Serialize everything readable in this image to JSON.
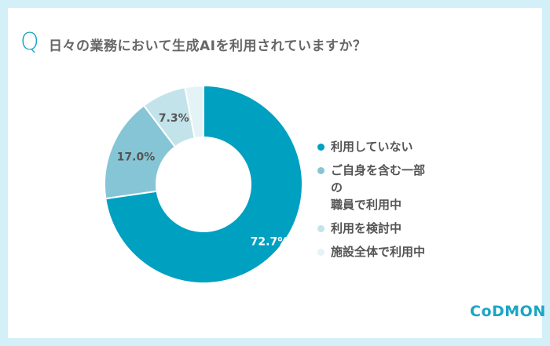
{
  "title": "日々の業務において生成AIを利用されていますか？",
  "q_mark": "Q",
  "logo": "CoDMON",
  "chart_data": {
    "type": "pie",
    "donut": true,
    "title": "日々の業務において生成AIを利用されていますか？",
    "categories": [
      "利用していない",
      "ご自身を含む一部の職員で利用中",
      "利用を検討中",
      "施設全体で利用中"
    ],
    "values": [
      72.7,
      17.0,
      7.3,
      3.0
    ],
    "data_labels": [
      "72.7%",
      "17.0%",
      "7.3%",
      ""
    ],
    "colors": [
      "#00a0c1",
      "#86c5d5",
      "#c3e3ea",
      "#e4f3f6"
    ],
    "legend_labels": [
      "利用していない",
      "ご自身を含む一部の\n職員で利用中",
      "利用を検討中",
      "施設全体で利用中"
    ],
    "legend_position": "right"
  }
}
